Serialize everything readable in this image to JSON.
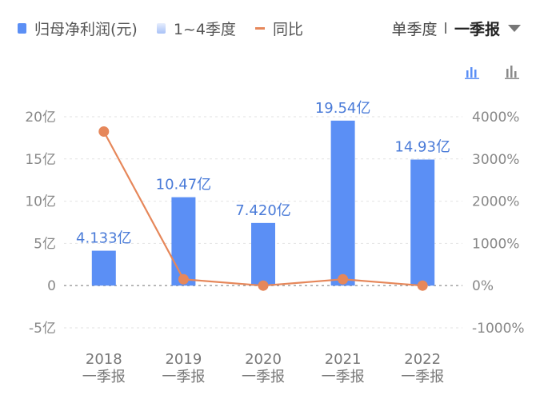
{
  "legend": {
    "bar_label": "归母净利润(元)",
    "quarter_label": "1~4季度",
    "line_label": "同比"
  },
  "mode": {
    "label": "单季度",
    "selected": "一季报"
  },
  "icons": {
    "bar_chart_active": "bar-chart-icon",
    "bar_chart": "bar-chart-icon"
  },
  "colors": {
    "bar": "#5b8ff5",
    "line": "#e6875a",
    "label": "#4a7bd8",
    "active_icon": "#5b8ff5"
  },
  "chart_data": {
    "type": "bar",
    "categories": [
      "2018\n一季报",
      "2019\n一季报",
      "2020\n一季报",
      "2021\n一季报",
      "2022\n一季报"
    ],
    "series": [
      {
        "name": "归母净利润(元)",
        "type": "bar",
        "values": [
          4.133,
          10.47,
          7.42,
          19.54,
          14.93
        ],
        "labels": [
          "4.133亿",
          "10.47亿",
          "7.420亿",
          "19.54亿",
          "14.93亿"
        ],
        "axis": "left"
      },
      {
        "name": "同比",
        "type": "line",
        "values": [
          3650,
          150,
          0,
          150,
          0
        ],
        "axis": "right"
      }
    ],
    "y_left": {
      "ticks": [
        20,
        15,
        10,
        5,
        0,
        -5
      ],
      "tick_labels": [
        "20亿",
        "15亿",
        "10亿",
        "5亿",
        "0",
        "-5亿"
      ],
      "range": [
        -5,
        20
      ]
    },
    "y_right": {
      "ticks": [
        4000,
        3000,
        2000,
        1000,
        0,
        -1000
      ],
      "tick_labels": [
        "4000%",
        "3000%",
        "2000%",
        "1000%",
        "0%",
        "-1000%"
      ],
      "range": [
        -1000,
        4000
      ]
    },
    "grid": "dotted-horizontal",
    "legend_position": "top-left"
  }
}
